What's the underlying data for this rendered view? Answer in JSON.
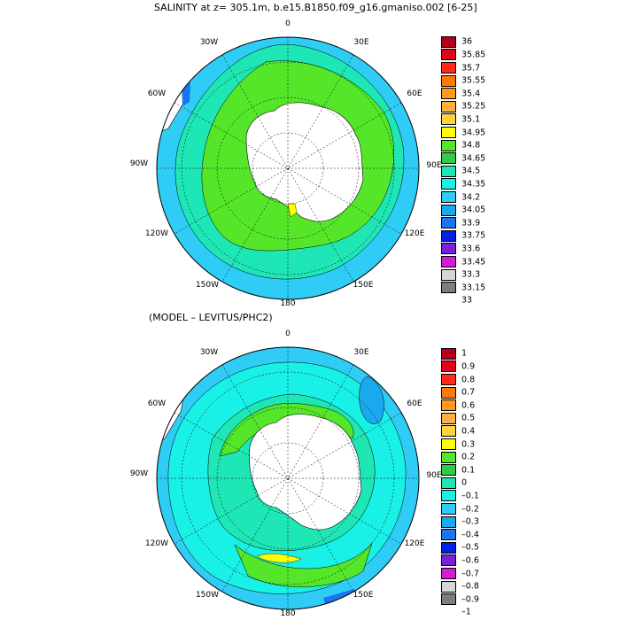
{
  "panel1": {
    "title": "SALINITY at z= 305.1m, b.e15.B1850.f09_g16.gmaniso.002 [6-25]",
    "colorbar": {
      "labels": [
        "36",
        "35.85",
        "35.7",
        "35.55",
        "35.4",
        "35.25",
        "35.1",
        "34.95",
        "34.8",
        "34.65",
        "34.5",
        "34.35",
        "34.2",
        "34.05",
        "33.9",
        "33.75",
        "33.6",
        "33.45",
        "33.3",
        "33.15",
        "33"
      ],
      "colors": [
        "#b0001a",
        "#e8001a",
        "#ff2a1a",
        "#ff7a00",
        "#ff9a20",
        "#ffb040",
        "#ffd43a",
        "#ffff00",
        "#55e62a",
        "#30cc46",
        "#1ee6b4",
        "#19f0e6",
        "#2fcdf5",
        "#1aa8ee",
        "#1976ee",
        "#0020e6",
        "#7a20d6",
        "#d61ad6",
        "#d6d6d6",
        "#7d7d7d"
      ]
    }
  },
  "panel2": {
    "title": "(MODEL – LEVITUS/PHC2)",
    "colorbar": {
      "labels": [
        "1",
        "0.9",
        "0.8",
        "0.7",
        "0.6",
        "0.5",
        "0.4",
        "0.3",
        "0.2",
        "0.1",
        "0",
        "–0.1",
        "–0.2",
        "–0.3",
        "–0.4",
        "–0.5",
        "–0.6",
        "–0.7",
        "–0.8",
        "–0.9",
        "–1"
      ],
      "colors": [
        "#b0001a",
        "#e8001a",
        "#ff2a1a",
        "#ff7a00",
        "#ff9a20",
        "#ffb040",
        "#ffd43a",
        "#ffff00",
        "#55e62a",
        "#30cc46",
        "#1ee6b4",
        "#19f0e6",
        "#2fcdf5",
        "#1aa8ee",
        "#1976ee",
        "#0020e6",
        "#7a20d6",
        "#d61ad6",
        "#d6d6d6",
        "#7d7d7d"
      ]
    }
  },
  "longitude_labels": {
    "n0": "0",
    "e30": "30E",
    "e60": "60E",
    "e90": "90E",
    "e120": "120E",
    "e150": "150E",
    "s180": "180",
    "w150": "150W",
    "w120": "120W",
    "w90": "90W",
    "w60": "60W",
    "w30": "30W"
  }
}
